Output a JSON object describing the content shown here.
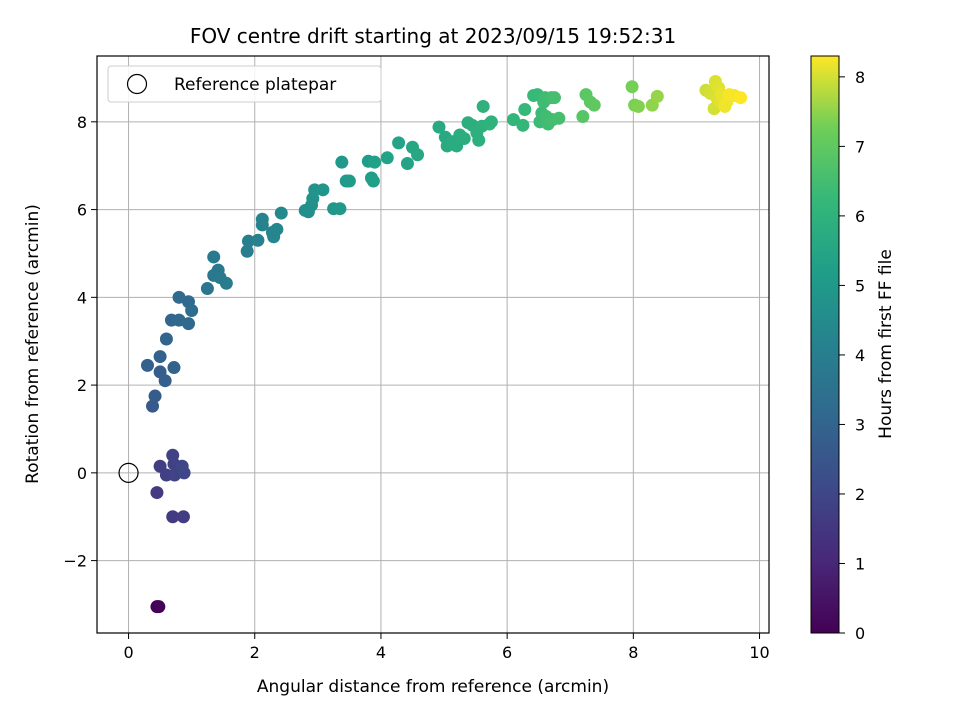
{
  "chart_data": {
    "type": "scatter",
    "title": "FOV centre drift starting at 2023/09/15 19:52:31",
    "xlabel": "Angular distance from reference (arcmin)",
    "ylabel": "Rotation from reference (arcmin)",
    "xlim": [
      -0.5,
      10.15
    ],
    "ylim": [
      -3.65,
      9.5
    ],
    "xticks": [
      0,
      2,
      4,
      6,
      8,
      10
    ],
    "yticks": [
      -2,
      0,
      2,
      4,
      6,
      8
    ],
    "xtick_labels": [
      "0",
      "2",
      "4",
      "6",
      "8",
      "10"
    ],
    "ytick_labels": [
      "−2",
      "0",
      "2",
      "4",
      "6",
      "8"
    ],
    "grid": true,
    "legend": {
      "position": "top-left",
      "entries": [
        {
          "label": "Reference platepar",
          "marker": "open-circle"
        }
      ]
    },
    "reference_point": {
      "x": 0,
      "y": 0
    },
    "colorbar": {
      "label": "Hours from first FF file",
      "range": [
        0,
        8.3
      ],
      "ticks": [
        0,
        1,
        2,
        3,
        4,
        5,
        6,
        7,
        8
      ],
      "tick_labels": [
        "0",
        "1",
        "2",
        "3",
        "4",
        "5",
        "6",
        "7",
        "8"
      ],
      "colormap": "viridis"
    },
    "points": [
      {
        "x": 0.45,
        "y": -3.05,
        "c": 0.0
      },
      {
        "x": 0.48,
        "y": -3.05,
        "c": 0.05
      },
      {
        "x": 0.45,
        "y": -0.45,
        "c": 1.6
      },
      {
        "x": 0.7,
        "y": -1.0,
        "c": 1.65
      },
      {
        "x": 0.87,
        "y": -1.0,
        "c": 1.7
      },
      {
        "x": 0.5,
        "y": 0.15,
        "c": 1.75
      },
      {
        "x": 0.6,
        "y": -0.05,
        "c": 1.8
      },
      {
        "x": 0.7,
        "y": 0.4,
        "c": 1.85
      },
      {
        "x": 0.72,
        "y": 0.2,
        "c": 1.85
      },
      {
        "x": 0.73,
        "y": -0.05,
        "c": 1.9
      },
      {
        "x": 0.85,
        "y": 0.15,
        "c": 1.95
      },
      {
        "x": 0.88,
        "y": 0.0,
        "c": 2.0
      },
      {
        "x": 0.38,
        "y": 1.52,
        "c": 2.65
      },
      {
        "x": 0.42,
        "y": 1.75,
        "c": 2.7
      },
      {
        "x": 0.5,
        "y": 2.3,
        "c": 2.75
      },
      {
        "x": 0.58,
        "y": 2.1,
        "c": 2.8
      },
      {
        "x": 0.3,
        "y": 2.45,
        "c": 2.85
      },
      {
        "x": 0.5,
        "y": 2.65,
        "c": 2.9
      },
      {
        "x": 0.72,
        "y": 2.4,
        "c": 2.95
      },
      {
        "x": 0.6,
        "y": 3.05,
        "c": 3.0
      },
      {
        "x": 0.68,
        "y": 3.48,
        "c": 3.05
      },
      {
        "x": 0.8,
        "y": 3.48,
        "c": 3.1
      },
      {
        "x": 0.95,
        "y": 3.4,
        "c": 3.15
      },
      {
        "x": 0.8,
        "y": 4.0,
        "c": 3.2
      },
      {
        "x": 0.95,
        "y": 3.9,
        "c": 3.25
      },
      {
        "x": 1.0,
        "y": 3.7,
        "c": 3.3
      },
      {
        "x": 1.25,
        "y": 4.2,
        "c": 3.65
      },
      {
        "x": 1.35,
        "y": 4.5,
        "c": 3.7
      },
      {
        "x": 1.42,
        "y": 4.62,
        "c": 3.75
      },
      {
        "x": 1.45,
        "y": 4.45,
        "c": 3.8
      },
      {
        "x": 1.35,
        "y": 4.92,
        "c": 3.85
      },
      {
        "x": 1.55,
        "y": 4.32,
        "c": 3.9
      },
      {
        "x": 1.88,
        "y": 5.05,
        "c": 4.0
      },
      {
        "x": 1.9,
        "y": 5.28,
        "c": 4.05
      },
      {
        "x": 2.05,
        "y": 5.3,
        "c": 4.1
      },
      {
        "x": 2.12,
        "y": 5.65,
        "c": 4.15
      },
      {
        "x": 2.12,
        "y": 5.78,
        "c": 4.2
      },
      {
        "x": 2.28,
        "y": 5.48,
        "c": 4.25
      },
      {
        "x": 2.3,
        "y": 5.38,
        "c": 4.3
      },
      {
        "x": 2.35,
        "y": 5.55,
        "c": 4.35
      },
      {
        "x": 2.42,
        "y": 5.92,
        "c": 4.4
      },
      {
        "x": 2.8,
        "y": 5.98,
        "c": 4.6
      },
      {
        "x": 2.85,
        "y": 5.95,
        "c": 4.65
      },
      {
        "x": 2.9,
        "y": 6.1,
        "c": 4.7
      },
      {
        "x": 2.92,
        "y": 6.25,
        "c": 4.75
      },
      {
        "x": 2.95,
        "y": 6.45,
        "c": 4.8
      },
      {
        "x": 3.08,
        "y": 6.45,
        "c": 4.85
      },
      {
        "x": 3.25,
        "y": 6.02,
        "c": 4.9
      },
      {
        "x": 3.35,
        "y": 6.02,
        "c": 4.95
      },
      {
        "x": 3.38,
        "y": 7.08,
        "c": 5.0
      },
      {
        "x": 3.45,
        "y": 6.65,
        "c": 5.05
      },
      {
        "x": 3.5,
        "y": 6.65,
        "c": 5.1
      },
      {
        "x": 3.8,
        "y": 7.1,
        "c": 5.15
      },
      {
        "x": 3.85,
        "y": 6.72,
        "c": 5.2
      },
      {
        "x": 3.88,
        "y": 6.65,
        "c": 5.25
      },
      {
        "x": 3.9,
        "y": 7.08,
        "c": 5.3
      },
      {
        "x": 4.1,
        "y": 7.18,
        "c": 5.35
      },
      {
        "x": 4.28,
        "y": 7.52,
        "c": 5.4
      },
      {
        "x": 4.42,
        "y": 7.05,
        "c": 5.45
      },
      {
        "x": 4.5,
        "y": 7.42,
        "c": 5.5
      },
      {
        "x": 4.58,
        "y": 7.25,
        "c": 5.55
      },
      {
        "x": 4.92,
        "y": 7.88,
        "c": 5.6
      },
      {
        "x": 5.02,
        "y": 7.65,
        "c": 5.65
      },
      {
        "x": 5.05,
        "y": 7.45,
        "c": 5.7
      },
      {
        "x": 5.15,
        "y": 7.55,
        "c": 5.75
      },
      {
        "x": 5.2,
        "y": 7.45,
        "c": 5.75
      },
      {
        "x": 5.25,
        "y": 7.7,
        "c": 5.8
      },
      {
        "x": 5.32,
        "y": 7.62,
        "c": 5.8
      },
      {
        "x": 5.38,
        "y": 7.98,
        "c": 5.85
      },
      {
        "x": 5.45,
        "y": 7.92,
        "c": 5.85
      },
      {
        "x": 5.52,
        "y": 7.75,
        "c": 5.9
      },
      {
        "x": 5.55,
        "y": 7.58,
        "c": 5.9
      },
      {
        "x": 5.6,
        "y": 7.9,
        "c": 5.95
      },
      {
        "x": 5.62,
        "y": 8.35,
        "c": 5.95
      },
      {
        "x": 5.72,
        "y": 7.95,
        "c": 6.0
      },
      {
        "x": 5.75,
        "y": 8.0,
        "c": 6.0
      },
      {
        "x": 6.1,
        "y": 8.05,
        "c": 6.15
      },
      {
        "x": 6.25,
        "y": 7.92,
        "c": 6.2
      },
      {
        "x": 6.28,
        "y": 8.28,
        "c": 6.25
      },
      {
        "x": 6.42,
        "y": 8.6,
        "c": 6.3
      },
      {
        "x": 6.48,
        "y": 8.62,
        "c": 6.3
      },
      {
        "x": 6.52,
        "y": 8.0,
        "c": 6.35
      },
      {
        "x": 6.55,
        "y": 8.2,
        "c": 6.35
      },
      {
        "x": 6.58,
        "y": 8.45,
        "c": 6.4
      },
      {
        "x": 6.6,
        "y": 8.55,
        "c": 6.4
      },
      {
        "x": 6.62,
        "y": 8.12,
        "c": 6.45
      },
      {
        "x": 6.65,
        "y": 7.95,
        "c": 6.45
      },
      {
        "x": 6.7,
        "y": 8.55,
        "c": 6.5
      },
      {
        "x": 6.72,
        "y": 8.05,
        "c": 6.5
      },
      {
        "x": 6.75,
        "y": 8.55,
        "c": 6.55
      },
      {
        "x": 6.82,
        "y": 8.08,
        "c": 6.55
      },
      {
        "x": 7.2,
        "y": 8.12,
        "c": 6.85
      },
      {
        "x": 7.25,
        "y": 8.62,
        "c": 6.9
      },
      {
        "x": 7.32,
        "y": 8.45,
        "c": 6.95
      },
      {
        "x": 7.38,
        "y": 8.38,
        "c": 7.0
      },
      {
        "x": 7.98,
        "y": 8.8,
        "c": 7.3
      },
      {
        "x": 8.02,
        "y": 8.38,
        "c": 7.35
      },
      {
        "x": 8.08,
        "y": 8.35,
        "c": 7.4
      },
      {
        "x": 8.3,
        "y": 8.38,
        "c": 7.5
      },
      {
        "x": 8.38,
        "y": 8.58,
        "c": 7.55
      },
      {
        "x": 9.15,
        "y": 8.72,
        "c": 7.95
      },
      {
        "x": 9.22,
        "y": 8.65,
        "c": 8.0
      },
      {
        "x": 9.28,
        "y": 8.3,
        "c": 8.0
      },
      {
        "x": 9.3,
        "y": 8.92,
        "c": 8.05
      },
      {
        "x": 9.32,
        "y": 8.55,
        "c": 8.05
      },
      {
        "x": 9.35,
        "y": 8.78,
        "c": 8.1
      },
      {
        "x": 9.38,
        "y": 8.45,
        "c": 8.1
      },
      {
        "x": 9.4,
        "y": 8.62,
        "c": 8.15
      },
      {
        "x": 9.42,
        "y": 8.55,
        "c": 8.15
      },
      {
        "x": 9.45,
        "y": 8.35,
        "c": 8.2
      },
      {
        "x": 9.48,
        "y": 8.45,
        "c": 8.2
      },
      {
        "x": 9.52,
        "y": 8.62,
        "c": 8.25
      },
      {
        "x": 9.6,
        "y": 8.6,
        "c": 8.25
      },
      {
        "x": 9.7,
        "y": 8.55,
        "c": 8.3
      }
    ]
  }
}
